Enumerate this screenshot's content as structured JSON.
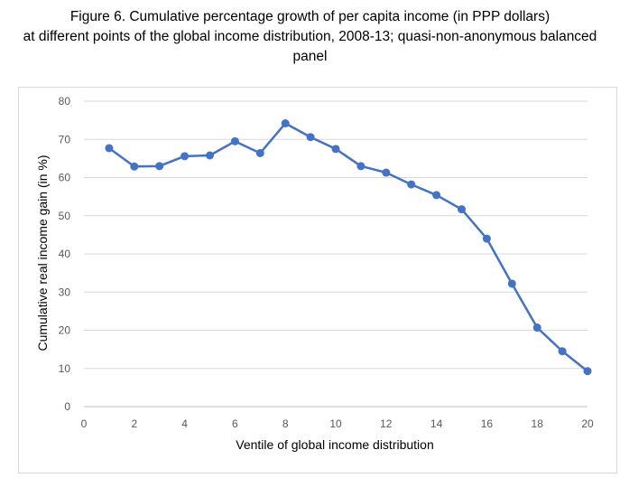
{
  "figure": {
    "caption_line1": "Figure 6.  Cumulative percentage growth of per capita income (in PPP dollars)",
    "caption_line2": "at different points of the global income distribution, 2008-13; quasi-non-anonymous balanced",
    "caption_line3": "panel"
  },
  "chart_data": {
    "type": "line",
    "title": "",
    "xlabel": "Ventile of global income distribution",
    "ylabel": "Cumulative real income gain (in %)",
    "xlim": [
      0,
      20
    ],
    "ylim": [
      0,
      80
    ],
    "x_ticks": [
      0,
      2,
      4,
      6,
      8,
      10,
      12,
      14,
      16,
      18,
      20
    ],
    "y_ticks": [
      0,
      10,
      20,
      30,
      40,
      50,
      60,
      70,
      80
    ],
    "grid": "horizontal",
    "legend": "none",
    "series": [
      {
        "name": "Cumulative real income gain",
        "color": "#4472C4",
        "x": [
          1,
          2,
          3,
          4,
          5,
          6,
          7,
          8,
          9,
          10,
          11,
          12,
          13,
          14,
          15,
          16,
          17,
          18,
          19,
          20
        ],
        "values": [
          67.7,
          62.9,
          63.0,
          65.6,
          65.8,
          69.5,
          66.4,
          74.2,
          70.6,
          67.5,
          63.0,
          61.3,
          58.2,
          55.4,
          51.7,
          44.0,
          32.2,
          20.7,
          14.5,
          9.3
        ]
      }
    ]
  }
}
